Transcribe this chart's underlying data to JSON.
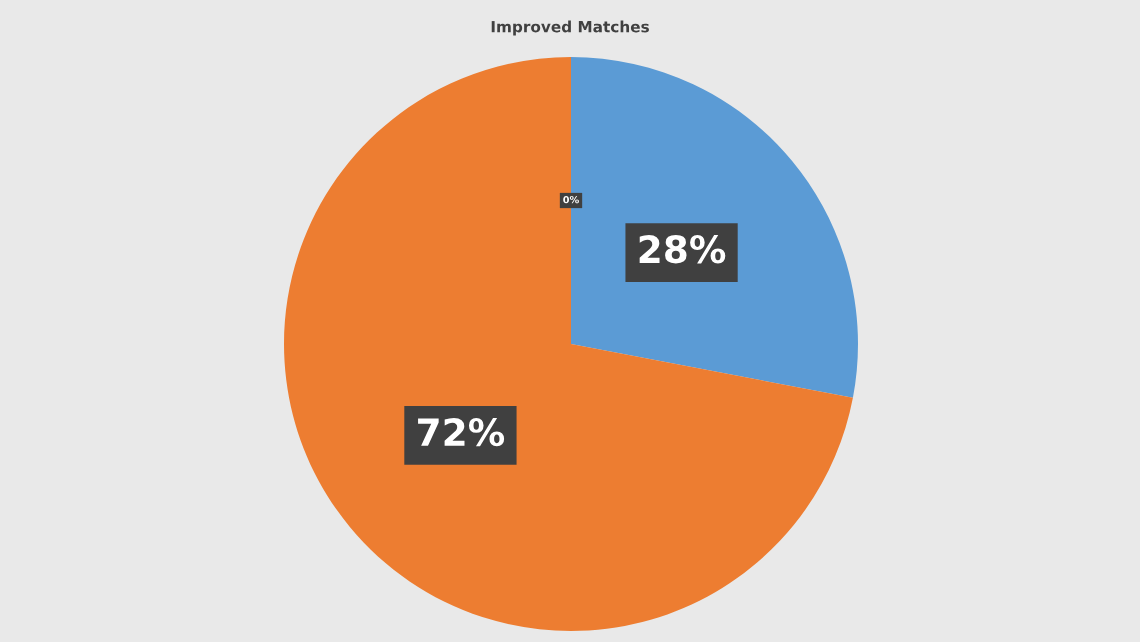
{
  "chart_data": {
    "type": "pie",
    "title": "Improved Matches",
    "categories": [
      null,
      null,
      null
    ],
    "values": [
      28,
      72,
      0
    ],
    "colors": [
      "#5b9bd5",
      "#ed7d31",
      "#a5a5a5"
    ],
    "value_labels": [
      "28%",
      "72%",
      "0%"
    ]
  }
}
